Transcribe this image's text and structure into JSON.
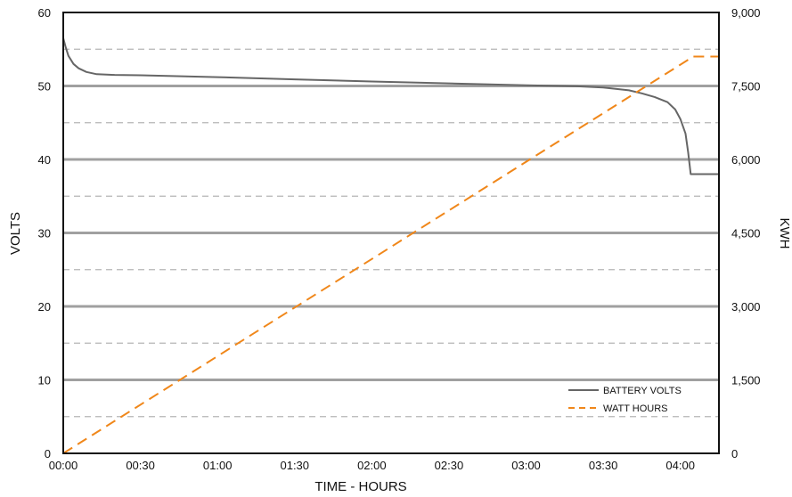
{
  "chart_data": {
    "type": "line",
    "xlabel": "TIME - HOURS",
    "ylabel_left": "VOLTS",
    "ylabel_right": "KWH",
    "x_ticks": [
      "00:00",
      "00:30",
      "01:00",
      "01:30",
      "02:00",
      "02:30",
      "03:00",
      "03:30",
      "04:00"
    ],
    "xlim_minutes": [
      0,
      255
    ],
    "y_left": {
      "ticks": [
        "0",
        "10",
        "20",
        "30",
        "40",
        "50",
        "60"
      ],
      "lim": [
        0,
        60
      ]
    },
    "y_right": {
      "ticks": [
        "0",
        "1,500",
        "3,000",
        "4,500",
        "6,000",
        "7,500",
        "9,000"
      ],
      "lim": [
        0,
        9000
      ]
    },
    "grid": {
      "major": true,
      "minor_dashed": true
    },
    "legend_position": "bottom-right",
    "colors": {
      "battery_volts": "#666666",
      "watt_hours": "#f0871a",
      "grid_major": "#a0a0a0",
      "grid_minor": "#b5b5b5"
    },
    "series": [
      {
        "name": "BATTERY VOLTS",
        "axis": "left",
        "style": "solid",
        "points": [
          [
            0,
            56.5
          ],
          [
            1,
            55.2
          ],
          [
            2,
            54.1
          ],
          [
            4,
            53.0
          ],
          [
            6,
            52.4
          ],
          [
            9,
            51.9
          ],
          [
            13,
            51.6
          ],
          [
            20,
            51.5
          ],
          [
            30,
            51.45
          ],
          [
            60,
            51.2
          ],
          [
            90,
            50.9
          ],
          [
            120,
            50.6
          ],
          [
            150,
            50.35
          ],
          [
            180,
            50.1
          ],
          [
            200,
            49.95
          ],
          [
            210,
            49.8
          ],
          [
            220,
            49.4
          ],
          [
            225,
            49.0
          ],
          [
            230,
            48.5
          ],
          [
            235,
            47.8
          ],
          [
            238,
            46.8
          ],
          [
            240,
            45.5
          ],
          [
            242,
            43.5
          ],
          [
            243,
            41.0
          ],
          [
            244,
            38.0
          ],
          [
            245,
            38.0
          ],
          [
            255,
            38.0
          ]
        ]
      },
      {
        "name": "WATT HOURS",
        "axis": "right",
        "style": "dashed",
        "points": [
          [
            0,
            0
          ],
          [
            245,
            8100
          ],
          [
            255,
            8100
          ]
        ]
      }
    ]
  }
}
